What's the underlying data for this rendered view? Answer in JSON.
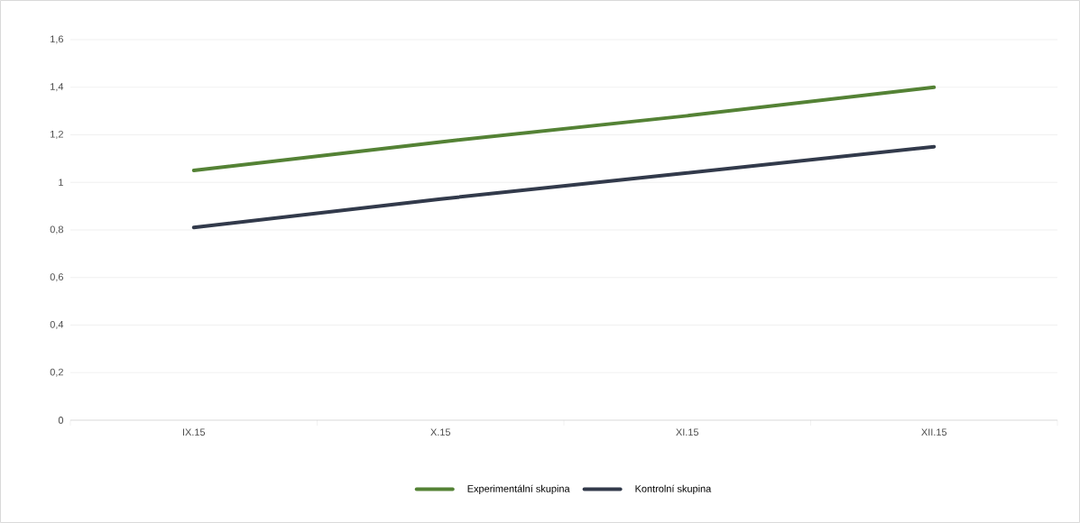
{
  "chart_data": {
    "type": "line",
    "categories": [
      "IX.15",
      "X.15",
      "XI.15",
      "XII.15"
    ],
    "series": [
      {
        "name": "Experimentální skupina",
        "color": "#548235",
        "values": [
          1.05,
          1.17,
          1.28,
          1.4
        ]
      },
      {
        "name": "Kontrolní skupina",
        "color": "#323a4b",
        "values": [
          0.81,
          0.93,
          1.04,
          1.15
        ]
      }
    ],
    "ylim": [
      0,
      1.6
    ],
    "yticks": [
      0,
      {
        "value": 0.2,
        "label": "0,2"
      },
      {
        "value": 0.4,
        "label": "0,4"
      },
      {
        "value": 0.6,
        "label": "0,6"
      },
      {
        "value": 0.8,
        "label": "0,8"
      },
      1,
      {
        "value": 1.2,
        "label": "1,2"
      },
      {
        "value": 1.4,
        "label": "1,4"
      },
      {
        "value": 1.6,
        "label": "1,6"
      }
    ],
    "grid": "y",
    "legend": "bottom",
    "marker": "none",
    "line_style": "solid"
  }
}
